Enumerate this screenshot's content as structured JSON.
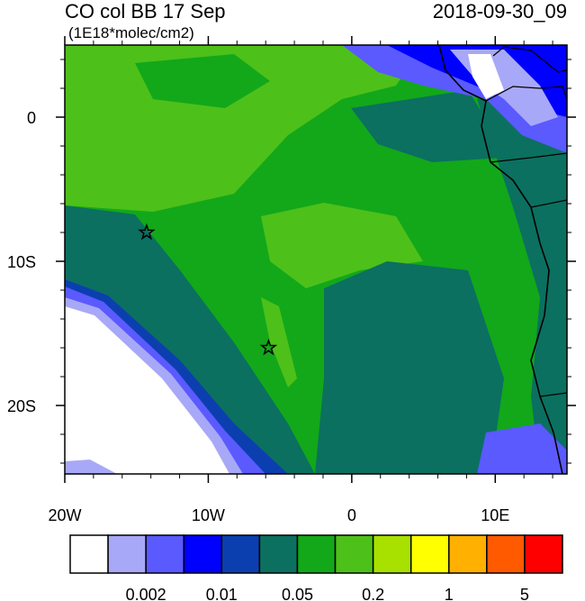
{
  "header": {
    "title": "CO col BB 17 Sep",
    "units": "(1E18*molec/cm2)",
    "date": "2018-09-30_09"
  },
  "map": {
    "lon_range": [
      -20,
      15
    ],
    "lat_range": [
      -24.75,
      5
    ],
    "lon_ticks": [
      {
        "value": -20,
        "label": "20W"
      },
      {
        "value": -10,
        "label": "10W"
      },
      0,
      {
        "value": 10,
        "label": "10E"
      }
    ],
    "lat_ticks": [
      0,
      {
        "value": -10,
        "label": "10S"
      },
      {
        "value": -20,
        "label": "20S"
      }
    ],
    "markers": [
      {
        "lon": -14.3,
        "lat": -8
      },
      {
        "lon": -5.8,
        "lat": -16
      }
    ]
  },
  "colorbar": {
    "colors": [
      "#ffffff",
      "#a8a8f8",
      "#5a5aff",
      "#0000ff",
      "#0b3fb0",
      "#0b7060",
      "#12a81a",
      "#4ec01a",
      "#a8e000",
      "#ffff00",
      "#ffb000",
      "#ff5a00",
      "#ff0000"
    ],
    "levels": [
      null,
      "0.002",
      null,
      "0.01",
      null,
      "0.05",
      null,
      "0.2",
      null,
      "1",
      null,
      "5"
    ]
  }
}
